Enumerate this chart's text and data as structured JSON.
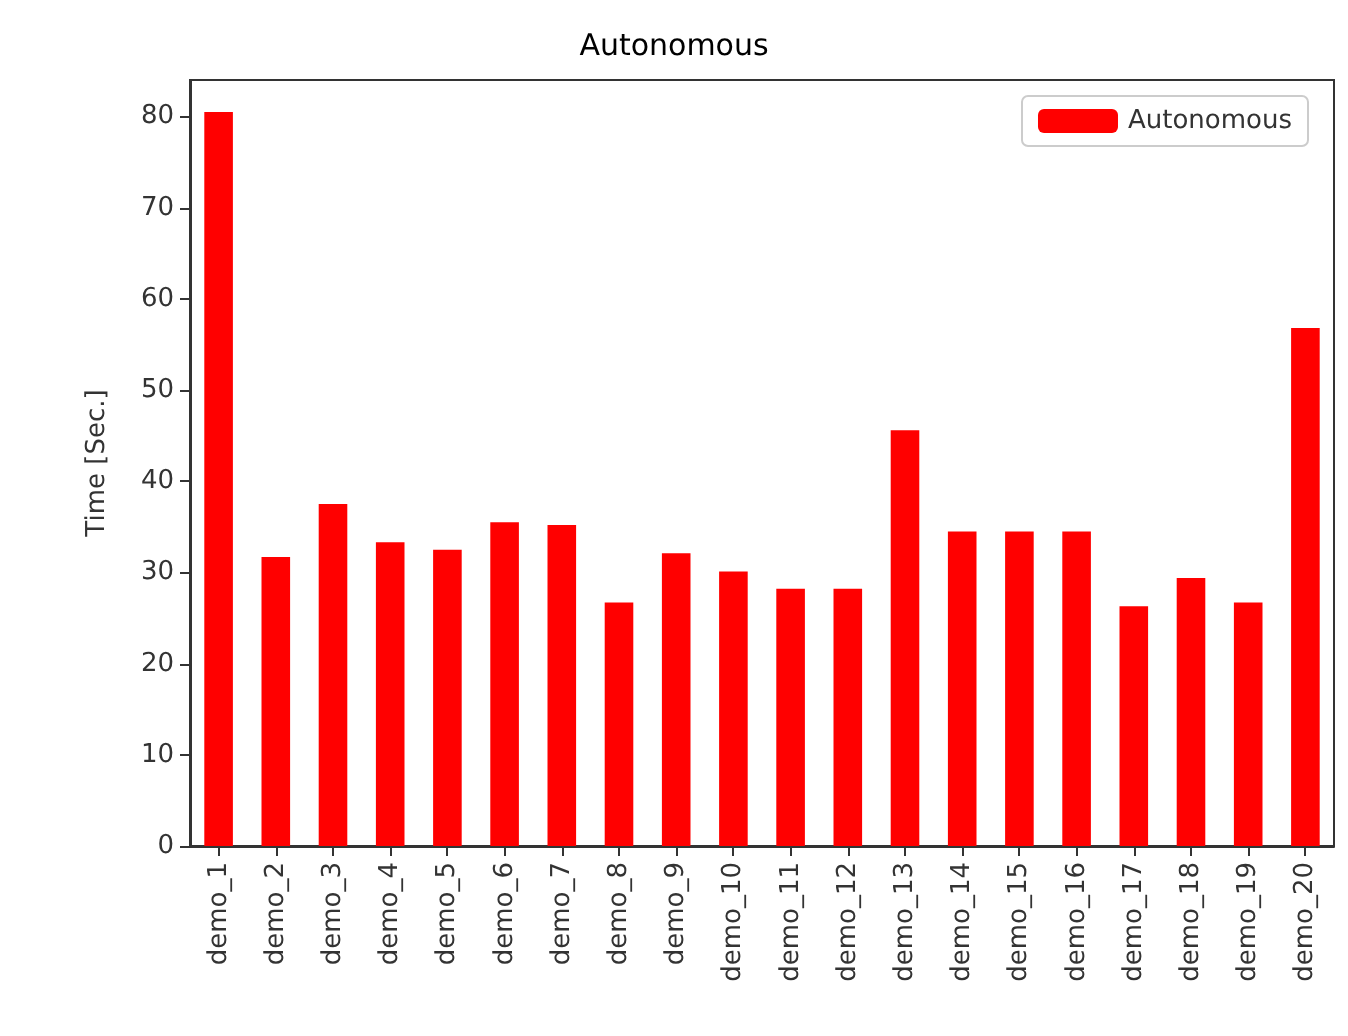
{
  "chart_data": {
    "type": "bar",
    "title": "Autonomous",
    "ylabel": "Time [Sec.]",
    "categories": [
      "demo_1",
      "demo_2",
      "demo_3",
      "demo_4",
      "demo_5",
      "demo_6",
      "demo_7",
      "demo_8",
      "demo_9",
      "demo_10",
      "demo_11",
      "demo_12",
      "demo_13",
      "demo_14",
      "demo_15",
      "demo_16",
      "demo_17",
      "demo_18",
      "demo_19",
      "demo_20"
    ],
    "series": [
      {
        "name": "Autonomous",
        "color": "#ff0000",
        "values": [
          80.5,
          31.7,
          37.5,
          33.3,
          32.5,
          35.5,
          35.2,
          26.7,
          32.1,
          30.1,
          28.2,
          28.2,
          45.6,
          34.5,
          34.5,
          34.5,
          26.3,
          29.4,
          26.7,
          56.8
        ]
      }
    ],
    "ylim": [
      0,
      84
    ],
    "yticks": [
      0,
      10,
      20,
      30,
      40,
      50,
      60,
      70,
      80
    ],
    "grid": false,
    "legend": "top right"
  }
}
